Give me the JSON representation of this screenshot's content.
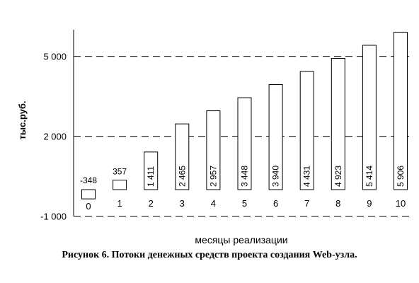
{
  "chart_data": {
    "type": "bar",
    "categories": [
      "0",
      "1",
      "2",
      "3",
      "4",
      "5",
      "6",
      "7",
      "8",
      "9",
      "10"
    ],
    "values": [
      -348,
      357,
      1411,
      2465,
      2957,
      3448,
      3940,
      4431,
      4923,
      5414,
      5906
    ],
    "data_labels": [
      "-348",
      "357",
      "1 411",
      "2 465",
      "2 957",
      "3 448",
      "3 940",
      "4 431",
      "4 923",
      "5 414",
      "5 906"
    ],
    "xlabel": "месяцы реализации",
    "ylabel": "тыс.руб.",
    "yticks": [
      -1000,
      2000,
      5000
    ],
    "ytick_labels": [
      "-1 000",
      "2 000",
      "5 000"
    ],
    "ylim": [
      -1000,
      6000
    ],
    "grid": "dashed horizontal at ticks"
  },
  "caption": "Рисунок 6. Потоки денежных средств проекта создания Web-узла."
}
